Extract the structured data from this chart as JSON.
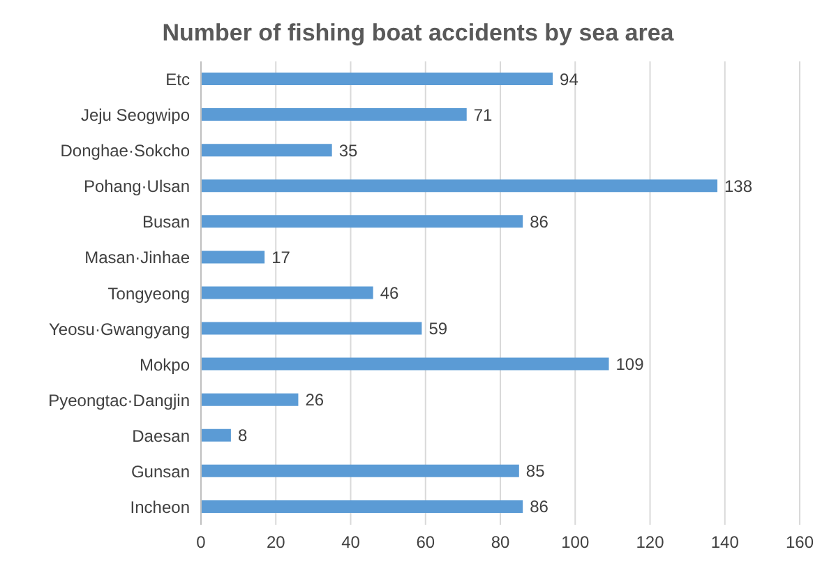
{
  "chart_data": {
    "type": "bar",
    "orientation": "horizontal",
    "title": "Number of fishing boat accidents by sea area",
    "categories": [
      "Etc",
      "Jeju Seogwipo",
      "Donghae·Sokcho",
      "Pohang·Ulsan",
      "Busan",
      "Masan·Jinhae",
      "Tongyeong",
      "Yeosu·Gwangyang",
      "Mokpo",
      "Pyeongtac·Dangjin",
      "Daesan",
      "Gunsan",
      "Incheon"
    ],
    "values": [
      94,
      71,
      35,
      138,
      86,
      17,
      46,
      59,
      109,
      26,
      8,
      85,
      86
    ],
    "color": "#5b9bd5",
    "xlim": [
      0,
      160
    ],
    "xticks": [
      0,
      20,
      40,
      60,
      80,
      100,
      120,
      140,
      160
    ],
    "grid": "x",
    "data_labels": true
  }
}
